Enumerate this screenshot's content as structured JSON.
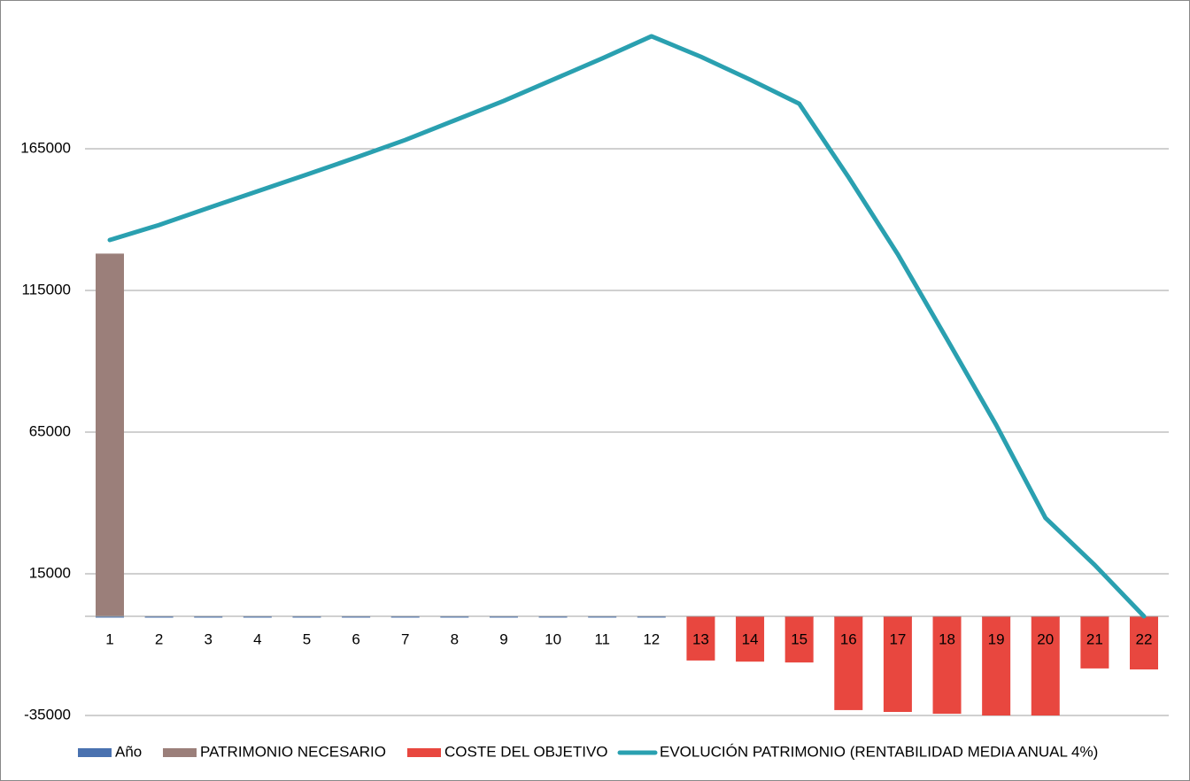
{
  "chart_data": {
    "type": "bar",
    "categories": [
      "1",
      "2",
      "3",
      "4",
      "5",
      "6",
      "7",
      "8",
      "9",
      "10",
      "11",
      "12",
      "13",
      "14",
      "15",
      "16",
      "17",
      "18",
      "19",
      "20",
      "21",
      "22"
    ],
    "series": [
      {
        "name": "Año",
        "color": "#4a72b0",
        "type": "bar",
        "values": [
          1,
          2,
          3,
          4,
          5,
          6,
          7,
          8,
          9,
          10,
          11,
          12,
          13,
          14,
          15,
          16,
          17,
          18,
          19,
          20,
          21,
          22
        ]
      },
      {
        "name": "PATRIMONIO NECESARIO",
        "color": "#9b7f7a",
        "type": "bar",
        "values": [
          128000,
          null,
          null,
          null,
          null,
          null,
          null,
          null,
          null,
          null,
          null,
          null,
          null,
          null,
          null,
          null,
          null,
          null,
          null,
          null,
          null,
          null
        ]
      },
      {
        "name": "COSTE DEL OBJETIVO",
        "color": "#e8473f",
        "type": "bar",
        "values": [
          null,
          null,
          null,
          null,
          null,
          null,
          null,
          null,
          null,
          null,
          null,
          null,
          -15600,
          -16000,
          -16300,
          -33100,
          -33750,
          -34400,
          -35000,
          -35000,
          -18400,
          -18750
        ]
      },
      {
        "name": "EVOLUCIÓN PATRIMONIO (RENTABILIDAD MEDIA ANUAL 4%)",
        "color": "#2aa0b0",
        "type": "line",
        "values": [
          132800,
          138100,
          144100,
          150000,
          155900,
          161900,
          168100,
          175000,
          181900,
          189400,
          196900,
          204700,
          197500,
          189400,
          180900,
          155000,
          127800,
          97800,
          67500,
          34700,
          18100,
          0
        ]
      }
    ],
    "ylim": [
      -35000,
      215000
    ],
    "yticks": [
      -35000,
      15000,
      65000,
      115000,
      165000
    ],
    "grid": true,
    "legend": "bottom"
  }
}
